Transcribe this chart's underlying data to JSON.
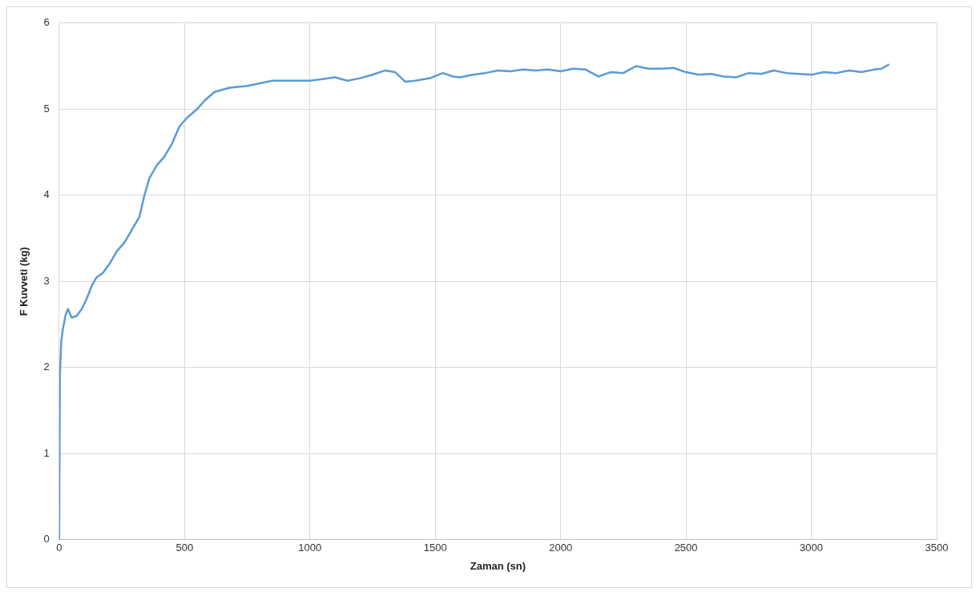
{
  "chart_data": {
    "type": "line",
    "xlabel": "Zaman (sn)",
    "ylabel": "F Kuvveti (kg)",
    "x": [
      0,
      3,
      8,
      15,
      25,
      35,
      50,
      70,
      90,
      110,
      130,
      150,
      175,
      200,
      230,
      260,
      290,
      320,
      340,
      360,
      390,
      420,
      450,
      480,
      510,
      550,
      580,
      620,
      680,
      750,
      800,
      850,
      900,
      1000,
      1050,
      1100,
      1150,
      1200,
      1250,
      1300,
      1340,
      1380,
      1420,
      1480,
      1530,
      1570,
      1600,
      1650,
      1700,
      1750,
      1800,
      1850,
      1900,
      1950,
      2000,
      2050,
      2100,
      2150,
      2200,
      2250,
      2300,
      2350,
      2400,
      2450,
      2500,
      2550,
      2600,
      2650,
      2700,
      2750,
      2800,
      2850,
      2900,
      2950,
      3000,
      3050,
      3100,
      3150,
      3200,
      3250,
      3280,
      3310
    ],
    "series": [
      {
        "color": "#5b9bd5",
        "values": [
          0,
          1.9,
          2.3,
          2.45,
          2.6,
          2.68,
          2.58,
          2.6,
          2.68,
          2.8,
          2.95,
          3.05,
          3.1,
          3.2,
          3.35,
          3.45,
          3.6,
          3.75,
          4.0,
          4.2,
          4.35,
          4.45,
          4.6,
          4.8,
          4.9,
          5.0,
          5.1,
          5.2,
          5.25,
          5.27,
          5.3,
          5.33,
          5.33,
          5.33,
          5.35,
          5.37,
          5.33,
          5.36,
          5.4,
          5.45,
          5.43,
          5.32,
          5.33,
          5.36,
          5.42,
          5.38,
          5.37,
          5.4,
          5.42,
          5.45,
          5.44,
          5.46,
          5.45,
          5.46,
          5.44,
          5.47,
          5.46,
          5.38,
          5.43,
          5.42,
          5.5,
          5.47,
          5.47,
          5.48,
          5.43,
          5.4,
          5.41,
          5.38,
          5.37,
          5.42,
          5.41,
          5.45,
          5.42,
          5.41,
          5.4,
          5.43,
          5.42,
          5.45,
          5.43,
          5.46,
          5.47,
          5.52
        ]
      }
    ],
    "xlim": [
      0,
      3500
    ],
    "xticks": [
      0,
      500,
      1000,
      1500,
      2000,
      2500,
      3000,
      3500
    ],
    "ylim": [
      0,
      6
    ],
    "yticks": [
      0,
      1,
      2,
      3,
      4,
      5,
      6
    ],
    "grid": true,
    "legend": false,
    "marker": "none",
    "line_style": "solid"
  }
}
